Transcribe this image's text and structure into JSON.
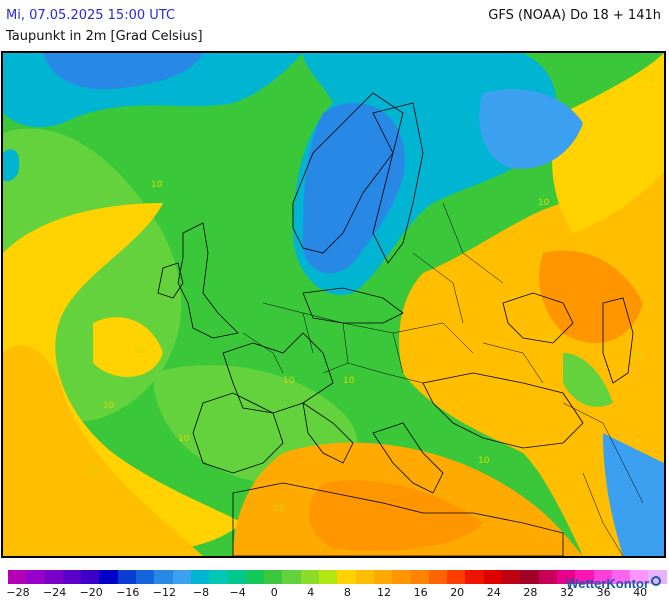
{
  "header": {
    "date": "Mi, 07.05.2025 15:00 UTC",
    "parameter": "Taupunkt in 2m [Grad Celsius]",
    "model": "GFS (NOAA) Do 18 + 141h"
  },
  "map": {
    "contour_labels": [
      "10",
      "10",
      "10",
      "10",
      "10",
      "10",
      "10",
      "10",
      "10",
      "10",
      "10",
      "10",
      "10"
    ]
  },
  "legend": {
    "colors": [
      "#b400b4",
      "#9600c8",
      "#7800c8",
      "#5a00c8",
      "#3c00c8",
      "#0000c8",
      "#0a3cd2",
      "#1464dc",
      "#2888e6",
      "#3ca0f0",
      "#00b4d2",
      "#00c8b4",
      "#00c88c",
      "#14c85a",
      "#3cc83c",
      "#64d23c",
      "#8cdc28",
      "#b4e614",
      "#ffd200",
      "#ffbe00",
      "#ffaa00",
      "#ff9600",
      "#ff8200",
      "#ff6400",
      "#ff3c00",
      "#f01400",
      "#dc0000",
      "#be0014",
      "#a00028",
      "#c8005a",
      "#e6008c",
      "#ff14b4",
      "#ff3cdc",
      "#ff64f0",
      "#ff96ff",
      "#e6b4ff"
    ],
    "ticks": [
      "-28",
      "-24",
      "-20",
      "-16",
      "-12",
      "-8",
      "-4",
      "0",
      "4",
      "8",
      "12",
      "16",
      "20",
      "24",
      "28",
      "32",
      "36",
      "40"
    ]
  },
  "logo": {
    "text": "WetterKontor"
  }
}
